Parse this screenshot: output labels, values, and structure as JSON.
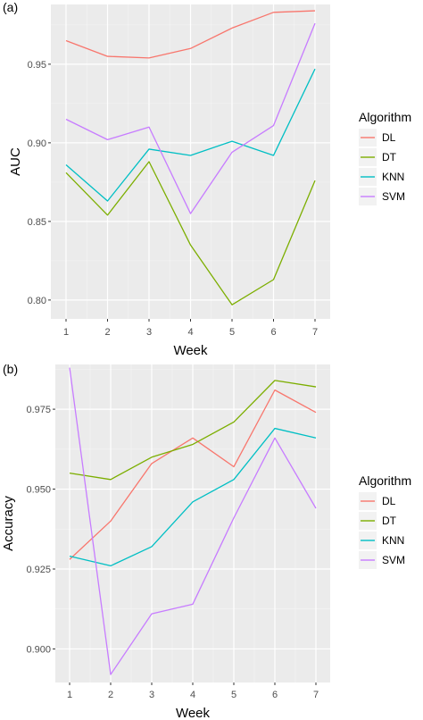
{
  "chart_data": [
    {
      "type": "line",
      "panel_label": "(a)",
      "xlabel": "Week",
      "ylabel": "AUC",
      "x": [
        1,
        2,
        3,
        4,
        5,
        6,
        7
      ],
      "x_ticks": [
        "1",
        "2",
        "3",
        "4",
        "5",
        "6",
        "7"
      ],
      "ylim": [
        0.788,
        0.988
      ],
      "y_ticks": [
        "0.80",
        "0.85",
        "0.90",
        "0.95"
      ],
      "y_tick_values": [
        0.8,
        0.85,
        0.9,
        0.95
      ],
      "grid": true,
      "legend": {
        "title": "Algorithm",
        "position": "right",
        "entries": [
          "DL",
          "DT",
          "KNN",
          "SVM"
        ]
      },
      "series": [
        {
          "name": "DL",
          "color": "#F8766D",
          "values": [
            0.965,
            0.955,
            0.954,
            0.96,
            0.973,
            0.983,
            0.984
          ]
        },
        {
          "name": "DT",
          "color": "#7CAE00",
          "values": [
            0.881,
            0.854,
            0.888,
            0.835,
            0.797,
            0.813,
            0.876
          ]
        },
        {
          "name": "KNN",
          "color": "#00BFC4",
          "values": [
            0.886,
            0.863,
            0.896,
            0.892,
            0.901,
            0.892,
            0.947
          ]
        },
        {
          "name": "SVM",
          "color": "#C77CFF",
          "values": [
            0.915,
            0.902,
            0.91,
            0.855,
            0.894,
            0.911,
            0.976
          ]
        }
      ]
    },
    {
      "type": "line",
      "panel_label": "(b)",
      "xlabel": "Week",
      "ylabel": "Accuracy",
      "x": [
        1,
        2,
        3,
        4,
        5,
        6,
        7
      ],
      "x_ticks": [
        "1",
        "2",
        "3",
        "4",
        "5",
        "6",
        "7"
      ],
      "ylim": [
        0.8895,
        0.989
      ],
      "y_ticks": [
        "0.900",
        "0.925",
        "0.950",
        "0.975"
      ],
      "y_tick_values": [
        0.9,
        0.925,
        0.95,
        0.975
      ],
      "grid": true,
      "legend": {
        "title": "Algorithm",
        "position": "right",
        "entries": [
          "DL",
          "DT",
          "KNN",
          "SVM"
        ]
      },
      "series": [
        {
          "name": "DL",
          "color": "#F8766D",
          "values": [
            0.928,
            0.94,
            0.958,
            0.966,
            0.957,
            0.981,
            0.974
          ]
        },
        {
          "name": "DT",
          "color": "#7CAE00",
          "values": [
            0.955,
            0.953,
            0.96,
            0.964,
            0.971,
            0.984,
            0.982
          ]
        },
        {
          "name": "KNN",
          "color": "#00BFC4",
          "values": [
            0.929,
            0.926,
            0.932,
            0.946,
            0.953,
            0.969,
            0.966
          ]
        },
        {
          "name": "SVM",
          "color": "#C77CFF",
          "values": [
            0.988,
            0.892,
            0.911,
            0.914,
            0.941,
            0.966,
            0.944
          ]
        }
      ]
    }
  ]
}
